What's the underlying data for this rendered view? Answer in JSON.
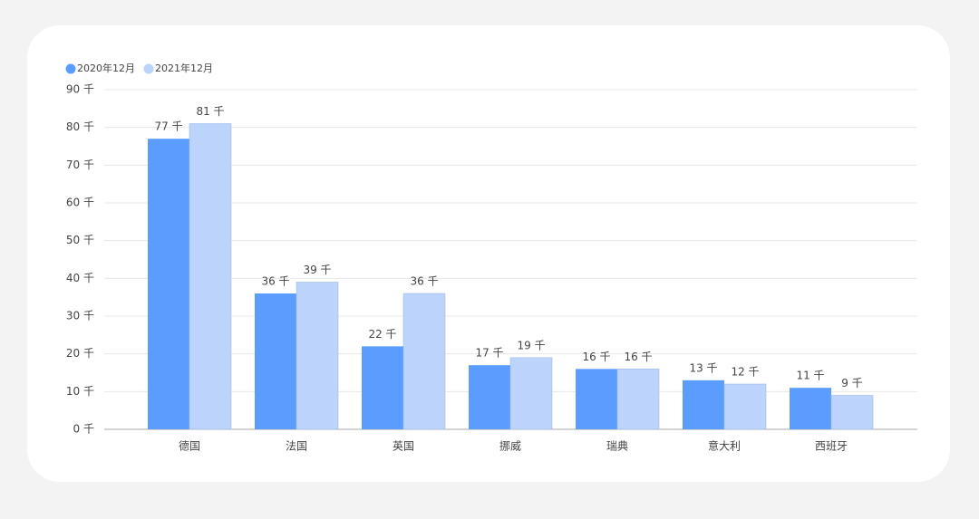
{
  "chart_data": {
    "type": "bar",
    "categories": [
      "德国",
      "法国",
      "英国",
      "挪威",
      "瑞典",
      "意大利",
      "西班牙"
    ],
    "series": [
      {
        "name": "2020年12月",
        "color": "#5b9dff",
        "values": [
          77,
          36,
          22,
          17,
          16,
          13,
          11
        ],
        "value_labels": [
          "77 千",
          "36 千",
          "22 千",
          "17 千",
          "16 千",
          "13 千",
          "11 千"
        ]
      },
      {
        "name": "2021年12月",
        "color": "#bcd4fb",
        "values": [
          81,
          39,
          36,
          19,
          16,
          12,
          9
        ],
        "value_labels": [
          "81 千",
          "39 千",
          "36 千",
          "19 千",
          "16 千",
          "12 千",
          "9 千"
        ]
      }
    ],
    "ylim": [
      0,
      90
    ],
    "yticks": [
      {
        "value": 0,
        "label": "0 千"
      },
      {
        "value": 10,
        "label": "10 千"
      },
      {
        "value": 20,
        "label": "20 千"
      },
      {
        "value": 30,
        "label": "30 千"
      },
      {
        "value": 40,
        "label": "40 千"
      },
      {
        "value": 50,
        "label": "50 千"
      },
      {
        "value": 60,
        "label": "60 千"
      },
      {
        "value": 70,
        "label": "70 千"
      },
      {
        "value": 80,
        "label": "80 千"
      },
      {
        "value": 90,
        "label": "90 千"
      }
    ],
    "grid": true
  }
}
